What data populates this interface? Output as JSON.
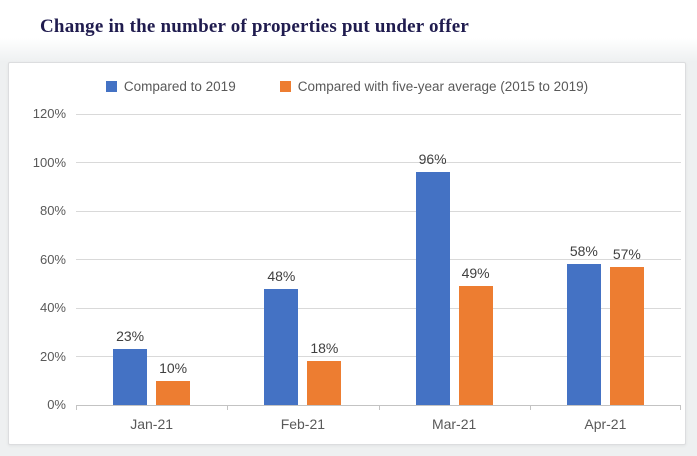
{
  "page_title": "Change in the number of properties put under offer",
  "colors": {
    "title": "#201c4f",
    "series_blue": "#4472C4",
    "series_orange": "#ED7D31",
    "gridline": "#d9d9d9",
    "axis_text": "#595959",
    "data_label_text": "#404040"
  },
  "chart_data": {
    "type": "bar",
    "title": "Change in the number of properties put under offer",
    "categories": [
      "Jan-21",
      "Feb-21",
      "Mar-21",
      "Apr-21"
    ],
    "series": [
      {
        "name": "Compared to 2019",
        "color": "#4472C4",
        "values": [
          23,
          48,
          96,
          58
        ]
      },
      {
        "name": "Compared with five-year average (2015 to 2019)",
        "color": "#ED7D31",
        "values": [
          10,
          18,
          49,
          57
        ]
      }
    ],
    "xlabel": "",
    "ylabel": "",
    "ylim": [
      0,
      120
    ],
    "y_tick_values": [
      0,
      20,
      40,
      60,
      80,
      100,
      120
    ],
    "y_tick_labels": [
      "0%",
      "20%",
      "40%",
      "60%",
      "80%",
      "100%",
      "120%"
    ],
    "grid": true,
    "legend_position": "top",
    "data_labels": [
      "23%",
      "10%",
      "48%",
      "18%",
      "96%",
      "49%",
      "58%",
      "57%"
    ],
    "data_label_format": "{value}%"
  }
}
